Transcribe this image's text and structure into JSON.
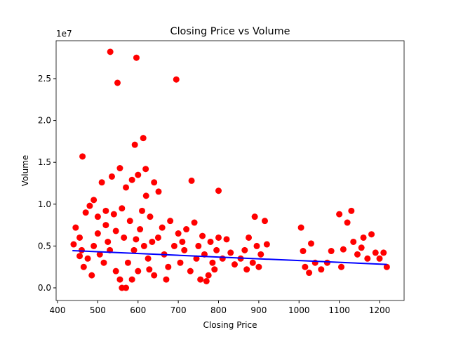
{
  "chart_data": {
    "type": "scatter",
    "title": "Closing Price vs Volume",
    "xlabel": "Closing Price",
    "ylabel": "Volume",
    "y_offset_label": "1e7",
    "xlim": [
      396.5,
      1261
    ],
    "ylim": [
      -0.151,
      2.953
    ],
    "xticks": [
      400,
      500,
      600,
      700,
      800,
      900,
      1000,
      1100,
      1200
    ],
    "yticks": [
      {
        "value": 0,
        "label": "0.0"
      },
      0.5,
      {
        "value": 1,
        "label": "1.0"
      },
      1.5,
      {
        "value": 2,
        "label": "2.0"
      },
      2.5
    ],
    "grid": false,
    "series": [
      {
        "mode": "markers",
        "color": "#ff0000",
        "x": [
          531,
          596,
          549,
          695,
          613,
          592,
          462,
          619,
          555,
          733,
          800,
          640,
          651,
          510,
          535,
          600,
          585,
          570,
          620,
          490,
          470,
          480,
          500,
          520,
          540,
          560,
          580,
          610,
          630,
          660,
          680,
          700,
          720,
          740,
          760,
          780,
          800,
          820,
          445,
          455,
          440,
          460,
          475,
          490,
          505,
          515,
          525,
          545,
          555,
          560,
          570,
          575,
          590,
          600,
          615,
          625,
          640,
          650,
          665,
          675,
          690,
          705,
          715,
          730,
          745,
          755,
          765,
          775,
          785,
          795,
          810,
          830,
          840,
          855,
          865,
          875,
          885,
          890,
          895,
          905,
          915,
          920,
          870,
          900,
          1005,
          1010,
          1015,
          1025,
          1030,
          1040,
          1055,
          1070,
          1080,
          1100,
          1105,
          1110,
          1120,
          1130,
          1135,
          1145,
          1155,
          1160,
          1170,
          1180,
          1190,
          1200,
          1210,
          1218,
          465,
          485,
          500,
          530,
          565,
          585,
          605,
          635,
          670,
          710,
          750,
          770,
          790,
          455,
          520,
          545,
          595,
          628
        ],
        "values": [
          2.82,
          2.75,
          2.45,
          2.49,
          1.79,
          1.71,
          1.57,
          1.42,
          1.43,
          1.28,
          1.16,
          1.26,
          1.15,
          1.26,
          1.33,
          1.35,
          1.29,
          1.2,
          1.1,
          1.05,
          0.9,
          0.98,
          0.85,
          0.75,
          0.88,
          0.95,
          0.8,
          0.92,
          0.85,
          0.72,
          0.8,
          0.65,
          0.7,
          0.78,
          0.62,
          0.55,
          0.6,
          0.58,
          0.72,
          0.6,
          0.52,
          0.45,
          0.35,
          0.5,
          0.4,
          0.3,
          0.55,
          0.2,
          0.1,
          0.0,
          0.0,
          0.3,
          0.45,
          0.2,
          0.5,
          0.35,
          0.15,
          0.6,
          0.4,
          0.25,
          0.5,
          0.3,
          0.45,
          0.2,
          0.35,
          0.1,
          0.4,
          0.15,
          0.3,
          0.45,
          0.35,
          0.42,
          0.28,
          0.35,
          0.45,
          0.6,
          0.3,
          0.85,
          0.5,
          0.4,
          0.8,
          0.52,
          0.22,
          0.25,
          0.72,
          0.44,
          0.25,
          0.18,
          0.53,
          0.3,
          0.22,
          0.3,
          0.44,
          0.88,
          0.25,
          0.46,
          0.78,
          0.92,
          0.55,
          0.4,
          0.48,
          0.6,
          0.35,
          0.64,
          0.42,
          0.35,
          0.42,
          0.25,
          0.25,
          0.15,
          0.65,
          0.45,
          0.6,
          0.1,
          0.7,
          0.55,
          0.1,
          0.55,
          0.5,
          0.08,
          0.22,
          0.38,
          0.92,
          0.68,
          0.58,
          0.22
        ]
      },
      {
        "mode": "line",
        "color": "#0000ff",
        "x": [
          437,
          1218
        ],
        "values": [
          0.445,
          0.28
        ]
      }
    ]
  }
}
